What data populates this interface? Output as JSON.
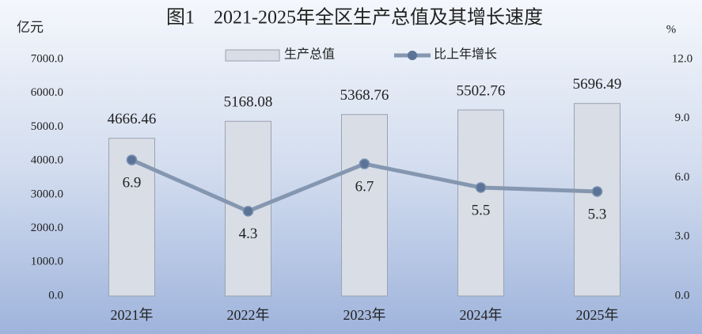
{
  "chart_data": {
    "type": "bar_line",
    "title": "图1　2021-2025年全区生产总值及其增长速度",
    "y_label": "亿元",
    "y2_label": "%",
    "categories": [
      "2021年",
      "2022年",
      "2023年",
      "2024年",
      "2025年"
    ],
    "series": [
      {
        "name": "生产总值",
        "type": "bar",
        "color": "#d8dde6",
        "values": [
          4666.46,
          5168.08,
          5368.76,
          5502.76,
          5696.49
        ]
      },
      {
        "name": "比上年增长",
        "type": "line",
        "axis": "y2",
        "color": "#8597b0",
        "values": [
          6.9,
          4.3,
          6.7,
          5.5,
          5.3
        ]
      }
    ],
    "ylim": [
      0,
      7000
    ],
    "yticks": [
      {
        "value": 0,
        "label": "0.0"
      },
      {
        "value": 1000,
        "label": "1000.0"
      },
      {
        "value": 2000,
        "label": "2000.0"
      },
      {
        "value": 3000,
        "label": "3000.0"
      },
      {
        "value": 4000,
        "label": "4000.0"
      },
      {
        "value": 5000,
        "label": "5000.0"
      },
      {
        "value": 6000,
        "label": "6000.0"
      },
      {
        "value": 7000,
        "label": "7000.0"
      }
    ],
    "y2lim": [
      0,
      12
    ],
    "y2ticks": [
      {
        "value": 0,
        "label": "0.0"
      },
      {
        "value": 3,
        "label": "3.0"
      },
      {
        "value": 6,
        "label": "6.0"
      },
      {
        "value": 9,
        "label": "9.0"
      },
      {
        "value": 12,
        "label": "12.0"
      }
    ],
    "legend": "top"
  }
}
